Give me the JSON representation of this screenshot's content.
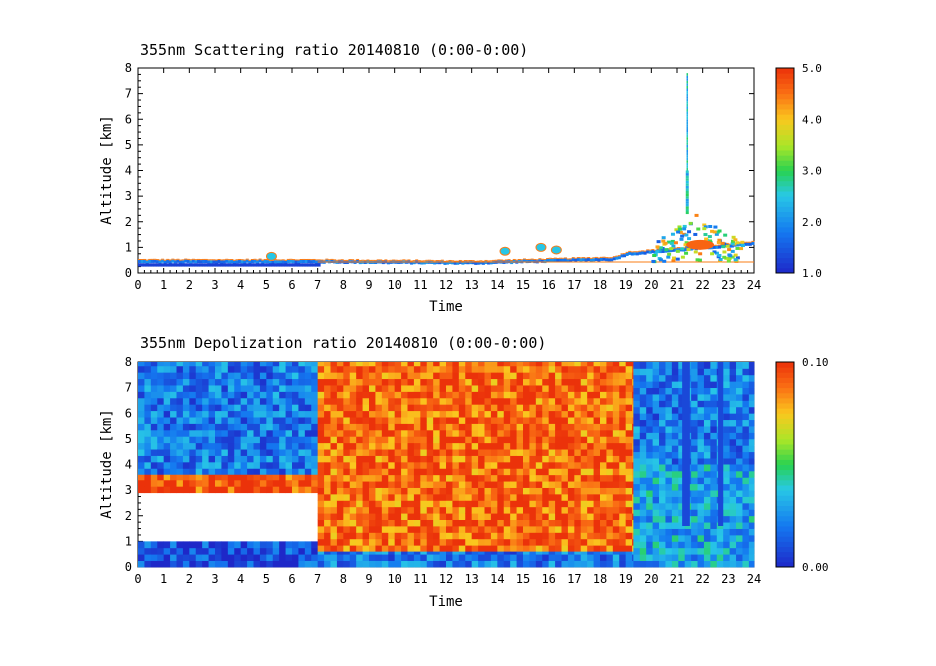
{
  "chart_data": [
    {
      "type": "heatmap",
      "title": "355nm Scattering ratio  20140810 (0:00-0:00)",
      "xlabel": "Time",
      "ylabel": "Altitude [km]",
      "xlim": [
        0,
        24
      ],
      "ylim": [
        0,
        8
      ],
      "x_ticks": [
        "0",
        "1",
        "2",
        "3",
        "4",
        "5",
        "6",
        "7",
        "8",
        "9",
        "10",
        "11",
        "12",
        "13",
        "14",
        "15",
        "16",
        "17",
        "18",
        "19",
        "20",
        "21",
        "22",
        "23",
        "24"
      ],
      "y_ticks": [
        "0",
        "1",
        "2",
        "3",
        "4",
        "5",
        "6",
        "7",
        "8"
      ],
      "colorbar": {
        "range": [
          1.0,
          5.0
        ],
        "ticks": [
          "1.0",
          "2.0",
          "3.0",
          "4.0",
          "5.0"
        ]
      },
      "features": [
        {
          "kind": "boundary_layer_top",
          "time": [
            0,
            7,
            13,
            18.5,
            19,
            24
          ],
          "altitude": [
            0.5,
            0.5,
            0.45,
            0.6,
            0.8,
            1.2
          ],
          "value": 1.5
        },
        {
          "kind": "aerosol_patches",
          "time": [
            5.2,
            14.3,
            15.7,
            16.3
          ],
          "altitude": [
            0.65,
            0.85,
            1.0,
            0.9
          ],
          "value": 2.5
        },
        {
          "kind": "cloud",
          "time": [
            20.0,
            23.5
          ],
          "altitude": [
            0.5,
            2.4
          ],
          "value": 4.5
        },
        {
          "kind": "plume",
          "time": 21.4,
          "altitude": [
            2.3,
            7.7
          ],
          "value": 2.0
        }
      ]
    },
    {
      "type": "heatmap",
      "title": "355nm Depolization ratio  20140810 (0:00-0:00)",
      "xlabel": "Time",
      "ylabel": "Altitude [km]",
      "xlim": [
        0,
        24
      ],
      "ylim": [
        0,
        8
      ],
      "x_ticks": [
        "0",
        "1",
        "2",
        "3",
        "4",
        "5",
        "6",
        "7",
        "8",
        "9",
        "10",
        "11",
        "12",
        "13",
        "14",
        "15",
        "16",
        "17",
        "18",
        "19",
        "20",
        "21",
        "22",
        "23",
        "24"
      ],
      "y_ticks": [
        "0",
        "1",
        "2",
        "3",
        "4",
        "5",
        "6",
        "7",
        "8"
      ],
      "colorbar": {
        "range": [
          0.0,
          0.1
        ],
        "ticks": [
          "0.00",
          "0.10"
        ]
      },
      "regions": [
        {
          "time": [
            0,
            7
          ],
          "altitude": [
            3.6,
            8
          ],
          "value": 0.02
        },
        {
          "time": [
            0,
            7
          ],
          "altitude": [
            2.9,
            3.6
          ],
          "value": 0.095
        },
        {
          "time": [
            0,
            7
          ],
          "altitude": [
            1.0,
            2.9
          ],
          "value": null
        },
        {
          "time": [
            0,
            7
          ],
          "altitude": [
            0,
            1.0
          ],
          "value": 0.01
        },
        {
          "time": [
            7,
            19.3
          ],
          "altitude": [
            0.6,
            8
          ],
          "value": 0.09
        },
        {
          "time": [
            7,
            19.3
          ],
          "altitude": [
            0,
            0.6
          ],
          "value": 0.02
        },
        {
          "time": [
            19.3,
            24
          ],
          "altitude": [
            4.0,
            8
          ],
          "value": 0.02
        },
        {
          "time": [
            19.3,
            24
          ],
          "altitude": [
            0,
            4.0
          ],
          "value": 0.03
        }
      ]
    }
  ]
}
